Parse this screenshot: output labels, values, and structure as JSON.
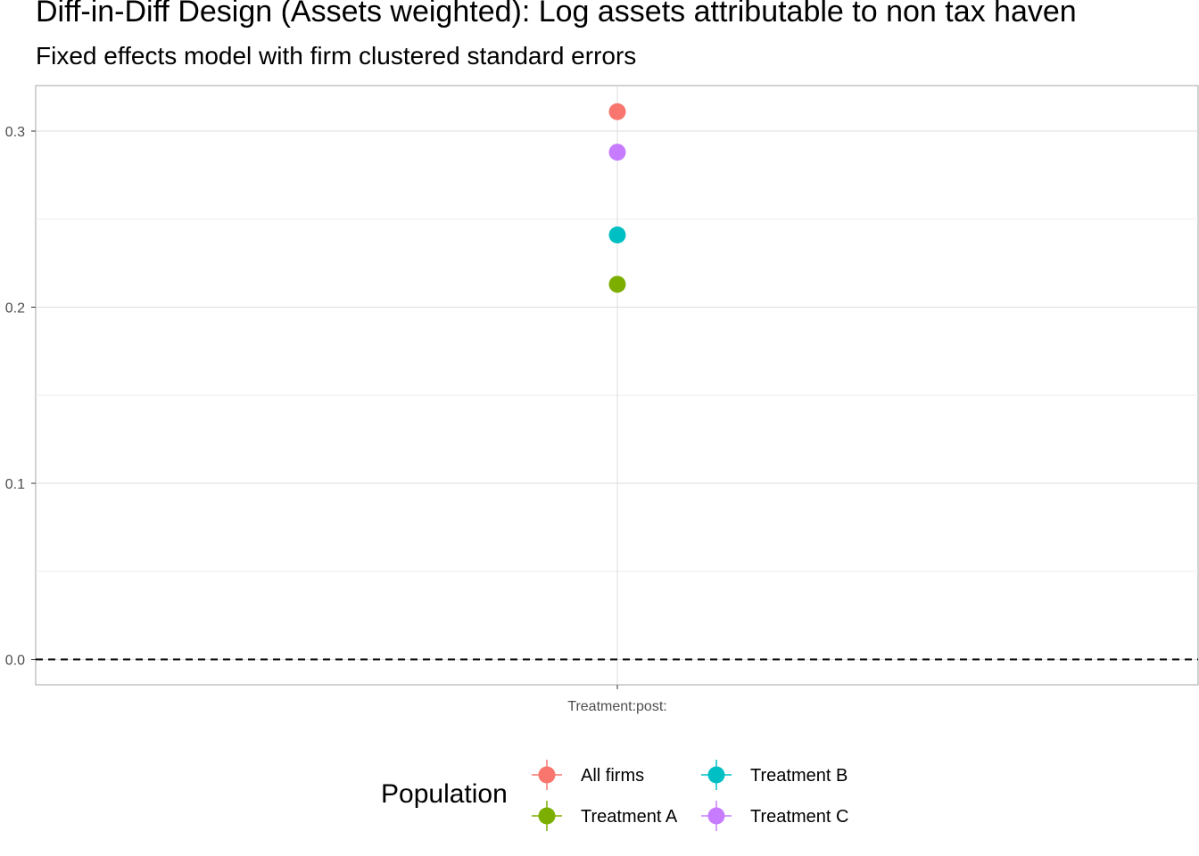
{
  "title": "Diff-in-Diff Design (Assets weighted): Log assets attributable to non tax haven",
  "subtitle": "Fixed effects model with firm clustered standard errors",
  "chart_data": {
    "type": "scatter",
    "x_categories": [
      "Treatment:post:"
    ],
    "ylim": [
      -0.015,
      0.326
    ],
    "y_ticks": [
      0.0,
      0.1,
      0.2,
      0.3
    ],
    "y_tick_labels": [
      "0.0",
      "0.1",
      "0.2",
      "0.3"
    ],
    "reference_line": {
      "y": 0,
      "style": "dashed"
    },
    "grid": true,
    "legend": {
      "title": "Population",
      "placement": "bottom"
    },
    "series": [
      {
        "name": "All firms",
        "color": "#F8766D",
        "x": "Treatment:post:",
        "y": 0.311
      },
      {
        "name": "Treatment A",
        "color": "#7CAE00",
        "x": "Treatment:post:",
        "y": 0.213
      },
      {
        "name": "Treatment B",
        "color": "#00BFC4",
        "x": "Treatment:post:",
        "y": 0.241
      },
      {
        "name": "Treatment C",
        "color": "#C77CFF",
        "x": "Treatment:post:",
        "y": 0.288
      }
    ]
  }
}
